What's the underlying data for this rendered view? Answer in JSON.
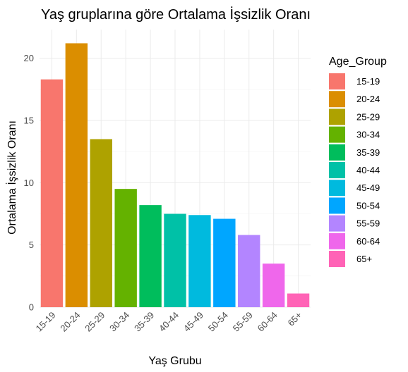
{
  "chart_data": {
    "type": "bar",
    "title": "Yaş gruplarına göre Ortalama İşsizlik Oranı",
    "xlabel": "Yaş Grubu",
    "ylabel": "Ortalama İşsizlik Oranı",
    "categories": [
      "15-19",
      "20-24",
      "25-29",
      "30-34",
      "35-39",
      "40-44",
      "45-49",
      "50-54",
      "55-59",
      "60-64",
      "65+"
    ],
    "values": [
      18.3,
      21.2,
      13.5,
      9.5,
      8.2,
      7.5,
      7.4,
      7.1,
      5.8,
      3.5,
      1.1
    ],
    "colors": [
      "#F8766D",
      "#DB8E00",
      "#AEA200",
      "#64B200",
      "#00BD5C",
      "#00C1A7",
      "#00BADE",
      "#00A6FF",
      "#B385FF",
      "#EF67EB",
      "#FF63B6"
    ],
    "ylim": [
      0,
      22.3
    ],
    "yticks": [
      0,
      5,
      10,
      15,
      20
    ],
    "grid": true,
    "legend": {
      "title": "Age_Group",
      "placement": "right",
      "entries": [
        "15-19",
        "20-24",
        "25-29",
        "30-34",
        "35-39",
        "40-44",
        "45-49",
        "50-54",
        "55-59",
        "60-64",
        "65+"
      ]
    }
  }
}
